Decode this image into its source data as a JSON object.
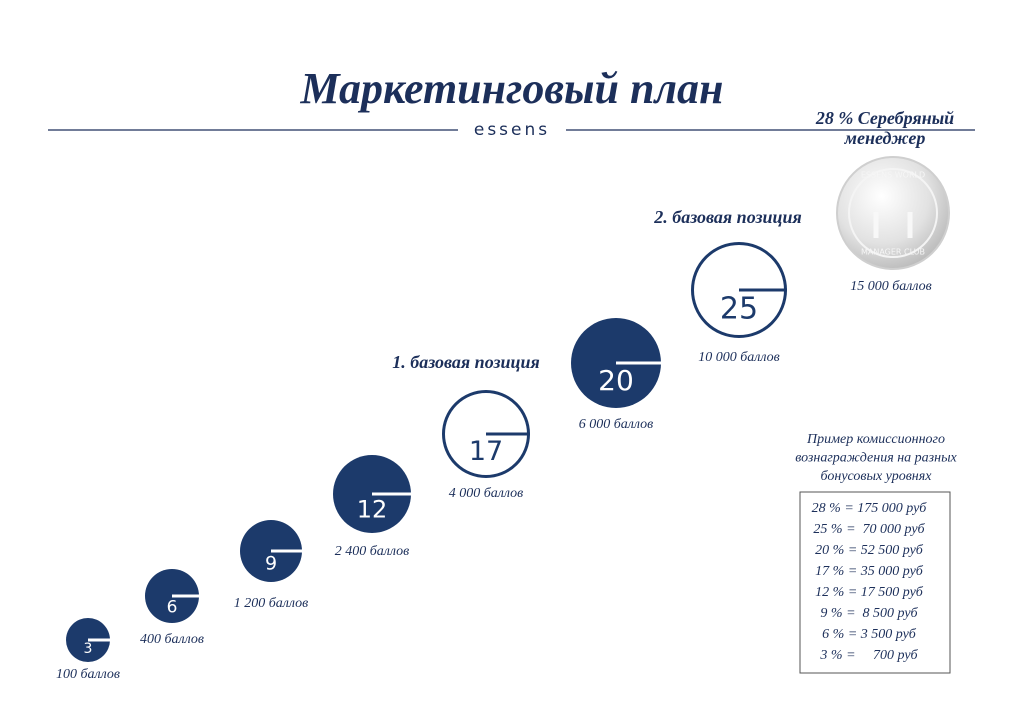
{
  "header": {
    "title": "Маркетинговый план",
    "brand": "essens"
  },
  "levels": [
    {
      "number": "3",
      "points": "100 баллов"
    },
    {
      "number": "6",
      "points": "400 баллов"
    },
    {
      "number": "9",
      "points": "1 200 баллов"
    },
    {
      "number": "12",
      "points": "2 400 баллов"
    },
    {
      "number": "17",
      "points": "4 000 баллов"
    },
    {
      "number": "20",
      "points": "6 000 баллов"
    },
    {
      "number": "25",
      "points": "10 000 баллов"
    }
  ],
  "milestones": [
    "1. базовая позиция",
    "2. базовая позиция"
  ],
  "top_level": {
    "title_lines": [
      "28 % Серебряный",
      "менеджер"
    ],
    "badge_top": "ESSENS WORLD",
    "badge_bottom": "MANAGER CLUB",
    "points": "15 000 баллов"
  },
  "commission": {
    "title_lines": [
      "Пример комиссионного",
      "вознаграждения на разных",
      "бонусовых уровнях"
    ],
    "rows": [
      "28 % = 175 000 руб",
      "25 % =  70 000 руб",
      "20 % = 52 500 руб",
      "17 % = 35 000 руб",
      "12 % = 17 500 руб",
      "9 % =  8 500 руб",
      "6 % = 3 500 руб",
      "3 % =     700 руб"
    ]
  }
}
